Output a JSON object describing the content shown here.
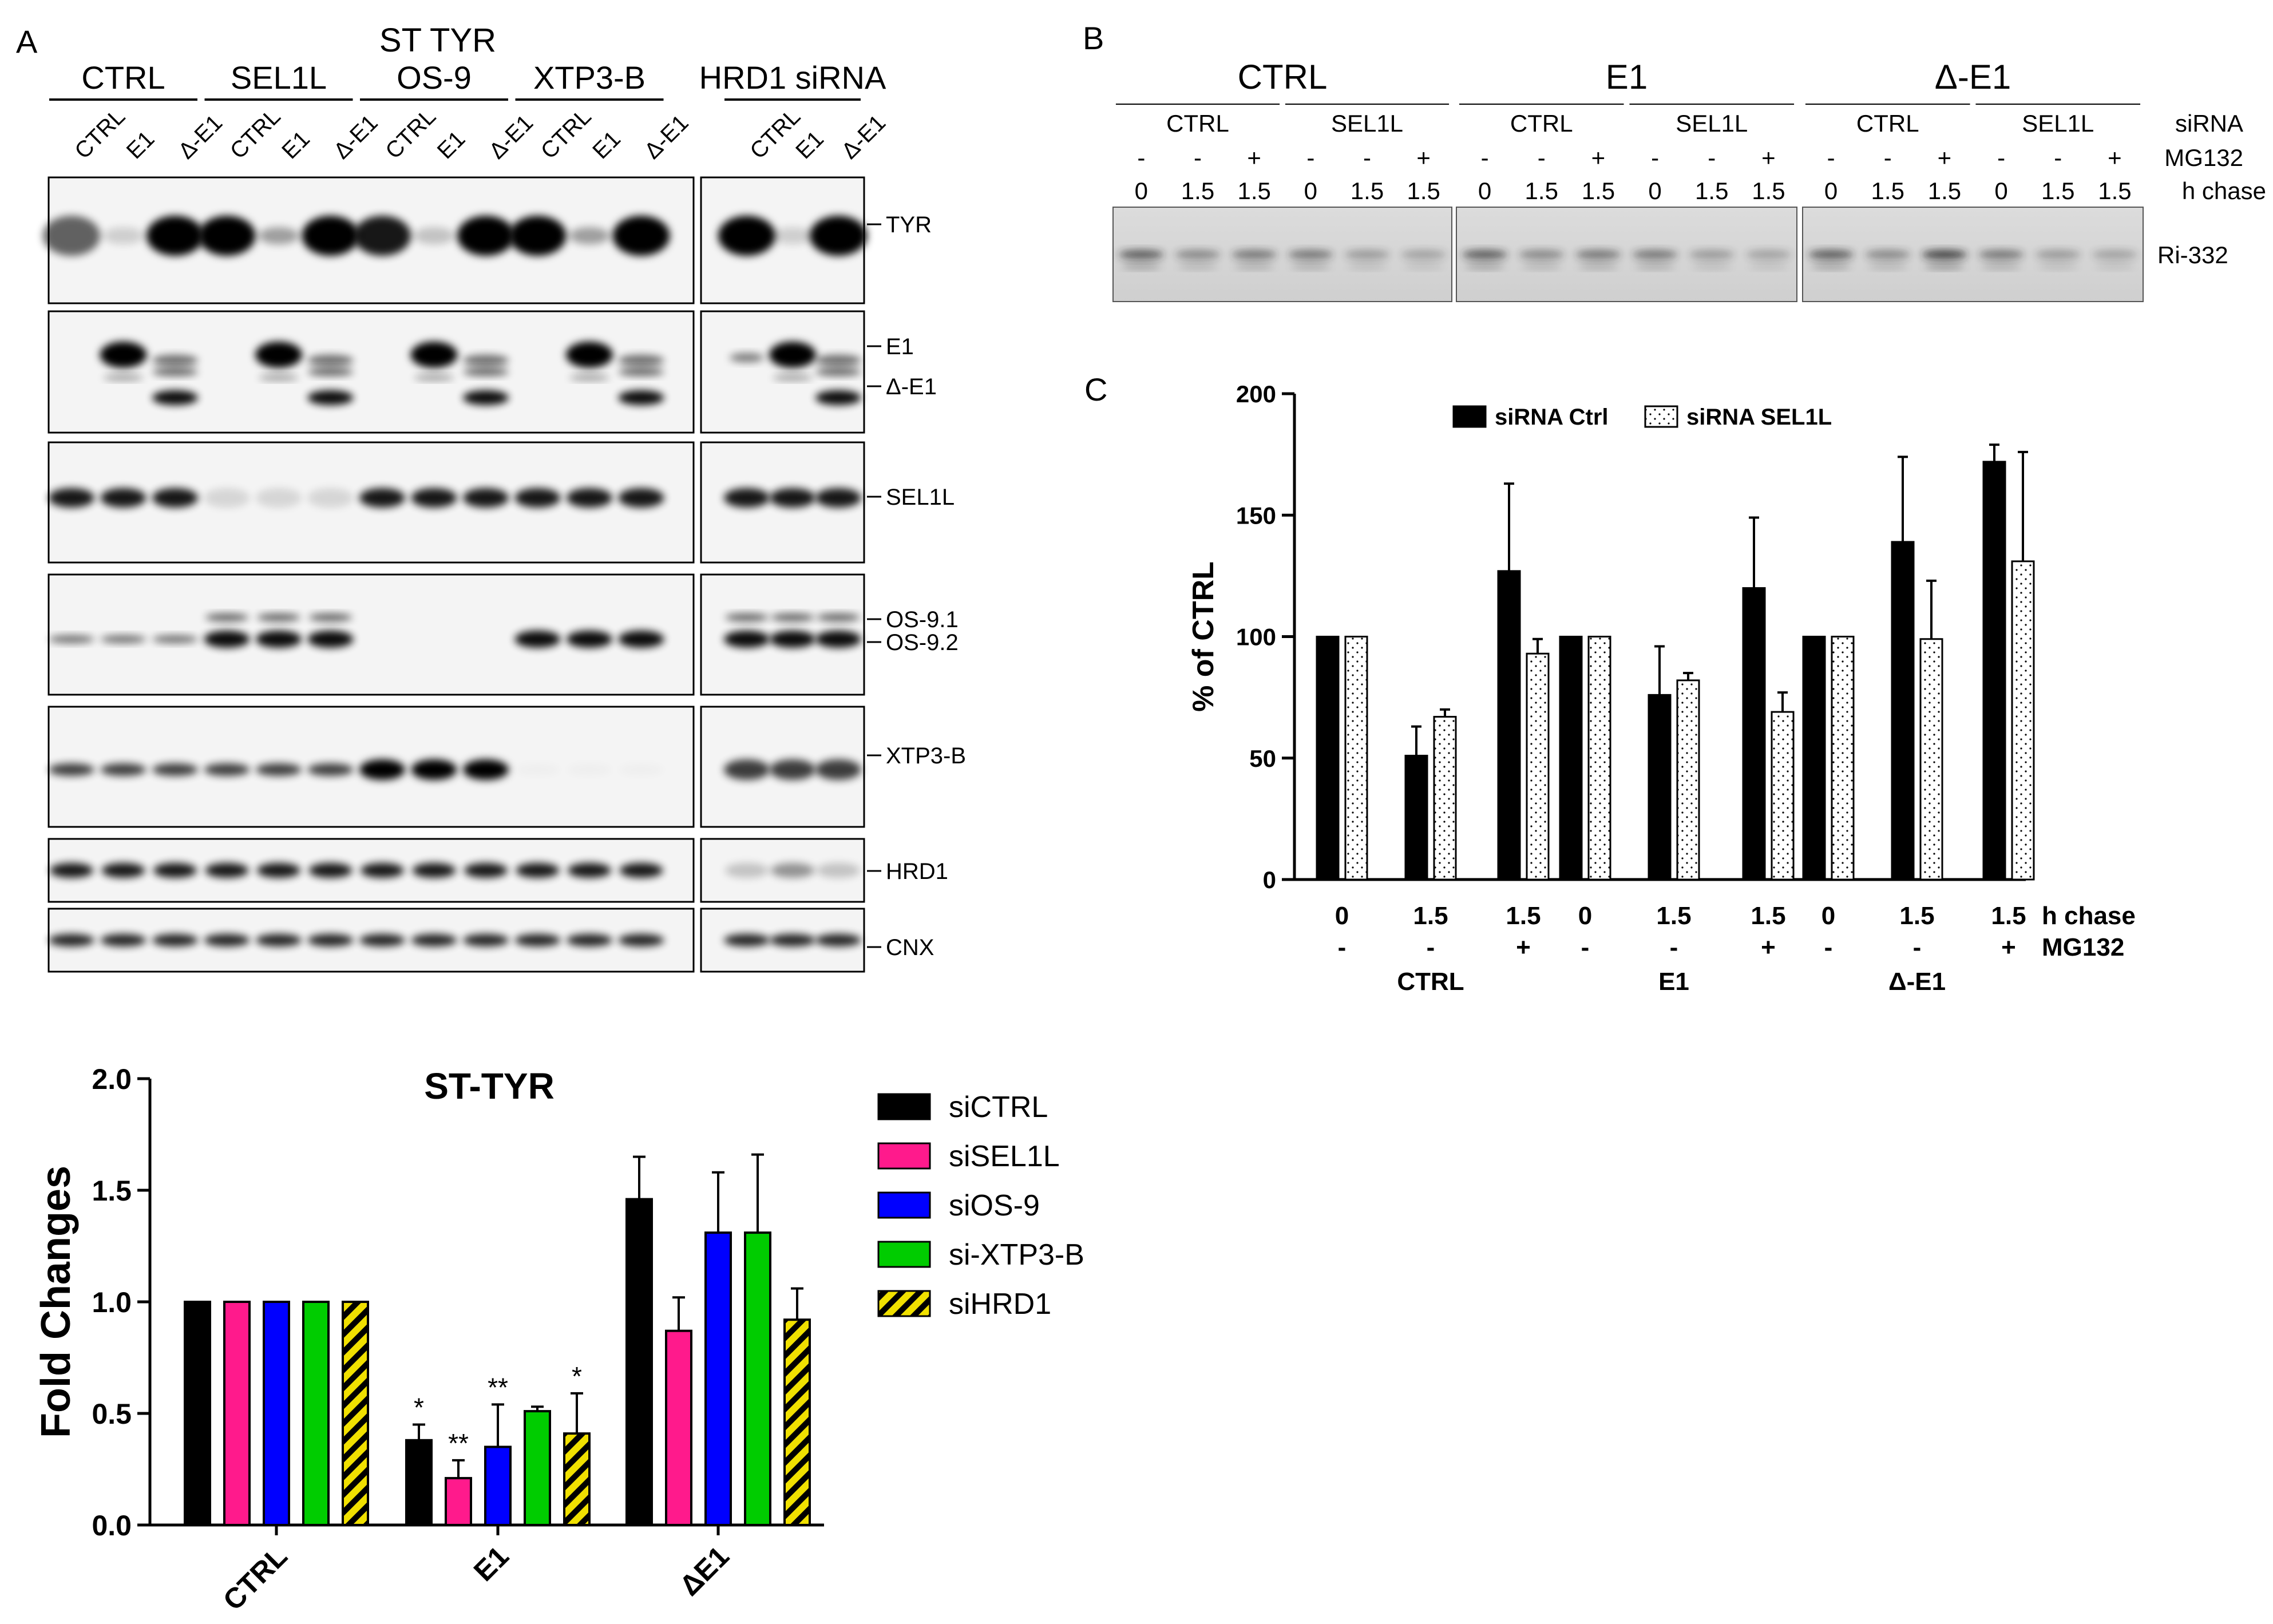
{
  "panel_a": {
    "letter": "A",
    "construct": "ST TYR",
    "sirna_groups": [
      "CTRL",
      "SEL1L",
      "OS-9",
      "XTP3-B",
      "HRD1 siRNA"
    ],
    "lane_labels": [
      "CTRL",
      "E1",
      "Δ-E1"
    ],
    "band_labels": {
      "tyr": "TYR",
      "e1": "E1",
      "de1": "Δ-E1",
      "sel1l": "SEL1L",
      "os91": "OS-9.1",
      "os92": "OS-9.2",
      "xtp3b": "XTP3-B",
      "hrd1": "HRD1",
      "cnx": "CNX"
    }
  },
  "panel_b": {
    "letter": "B",
    "constructs": [
      "CTRL",
      "E1",
      "Δ-E1"
    ],
    "sirna": [
      "CTRL",
      "SEL1L"
    ],
    "mg132_signs": [
      "-",
      "-",
      "+"
    ],
    "chase_values": [
      "0",
      "1.5",
      "1.5"
    ],
    "row_labels": {
      "sirna": "siRNA",
      "mg132": "MG132",
      "chase": "h chase"
    },
    "band_label": "Ri-332"
  },
  "panel_c": {
    "letter": "C"
  },
  "chart_data": [
    {
      "type": "bar",
      "ylabel": "% of CTRL",
      "ylim": [
        0,
        200
      ],
      "yticks": [
        "0",
        "50",
        "100",
        "150",
        "200"
      ],
      "chase_labels": [
        "0",
        "1.5",
        "1.5",
        "0",
        "1.5",
        "1.5",
        "0",
        "1.5",
        "1.5"
      ],
      "mg132_labels": [
        "-",
        "-",
        "+",
        "-",
        "-",
        "+",
        "-",
        "-",
        "+"
      ],
      "row_labels": {
        "chase": "h chase",
        "mg132": "MG132"
      },
      "groups": [
        "CTRL",
        "E1",
        "Δ-E1"
      ],
      "series": [
        {
          "name": "siRNA Ctrl",
          "color": "#000000",
          "values": [
            100,
            51,
            127,
            100,
            76,
            120,
            100,
            139,
            172
          ],
          "errors": [
            0,
            12,
            36,
            0,
            20,
            29,
            0,
            35,
            7
          ]
        },
        {
          "name": "siRNA SEL1L",
          "color": "#ffffff",
          "pattern": "dotted",
          "values": [
            100,
            67,
            93,
            100,
            82,
            69,
            100,
            99,
            131
          ],
          "errors": [
            0,
            3,
            6,
            0,
            3,
            8,
            0,
            24,
            45
          ]
        }
      ],
      "legend": "top"
    },
    {
      "type": "bar",
      "title": "ST-TYR",
      "ylabel": "Fold Changes",
      "ylim": [
        0,
        2
      ],
      "yticks": [
        "0.0",
        "0.5",
        "1.0",
        "1.5",
        "2.0"
      ],
      "categories": [
        "CTRL",
        "E1",
        "ΔE1"
      ],
      "series": [
        {
          "name": "siCTRL",
          "color": "#000000",
          "values": [
            1.0,
            0.38,
            1.46
          ],
          "errors": [
            0,
            0.07,
            0.19
          ],
          "sig": [
            "",
            "*",
            ""
          ]
        },
        {
          "name": "siSEL1L",
          "color": "#ff1a8c",
          "values": [
            1.0,
            0.21,
            0.87
          ],
          "errors": [
            0,
            0.08,
            0.15
          ],
          "sig": [
            "",
            "**",
            ""
          ]
        },
        {
          "name": "siOS-9",
          "color": "#0000ff",
          "values": [
            1.0,
            0.35,
            1.31
          ],
          "errors": [
            0,
            0.19,
            0.27
          ],
          "sig": [
            "",
            "**",
            ""
          ]
        },
        {
          "name": "si-XTP3-B",
          "color": "#00cc00",
          "values": [
            1.0,
            0.51,
            1.31
          ],
          "errors": [
            0,
            0.02,
            0.35
          ],
          "sig": [
            "",
            "",
            ""
          ]
        },
        {
          "name": "siHRD1",
          "color": "#f0e000",
          "pattern": "hatched",
          "values": [
            1.0,
            0.41,
            0.92
          ],
          "errors": [
            0,
            0.18,
            0.14
          ],
          "sig": [
            "",
            "*",
            ""
          ]
        }
      ],
      "legend": "right"
    }
  ]
}
